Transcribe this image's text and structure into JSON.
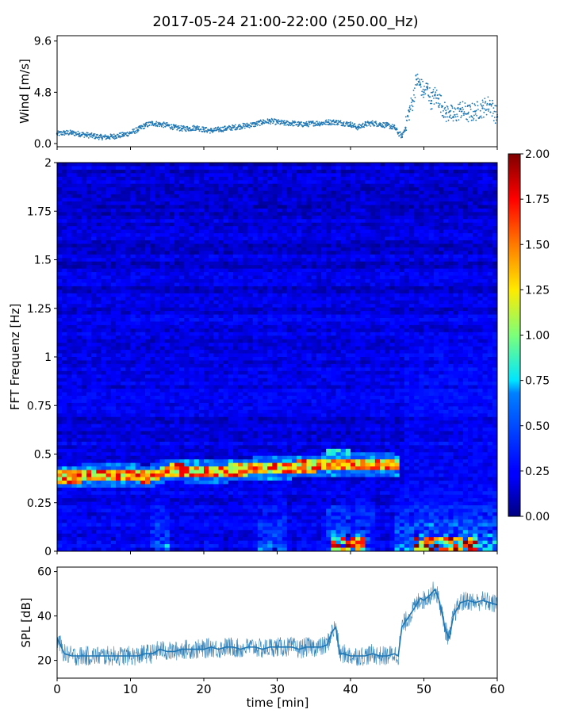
{
  "chart_data": [
    {
      "type": "scatter",
      "title": "2017-05-24 21:00-22:00 (250.00_Hz)",
      "ylabel": "Wind [m/s]",
      "xlabel": "",
      "xlim": [
        0,
        60
      ],
      "ylim": [
        -0.3,
        10.1
      ],
      "yticks": [
        0.0,
        4.8,
        9.6
      ],
      "ytick_labels": [
        "0.0",
        "4.8",
        "9.6"
      ],
      "xticks": [
        0,
        10,
        20,
        30,
        40,
        50,
        60
      ],
      "marker_color": "#1f77b4",
      "series": [
        {
          "x": [
            0,
            1,
            2,
            3,
            4,
            5,
            6,
            7,
            8,
            9,
            10,
            11,
            12,
            13,
            14,
            15,
            16,
            17,
            18,
            19,
            20,
            21,
            22,
            23,
            24,
            25,
            26,
            27,
            28,
            29,
            30,
            31,
            32,
            33,
            34,
            35,
            36,
            37,
            38,
            39,
            40,
            41,
            42,
            43,
            44,
            45,
            46,
            46.5,
            47,
            47.5,
            48,
            48.5,
            49,
            49.5,
            50,
            50.5,
            51,
            51.5,
            52,
            52.5,
            53,
            53.5,
            54,
            55,
            56,
            57,
            58,
            59,
            60
          ],
          "values": [
            0.9,
            1.0,
            1.0,
            0.9,
            0.8,
            0.7,
            0.6,
            0.6,
            0.7,
            0.8,
            1.0,
            1.3,
            1.7,
            1.9,
            1.8,
            1.7,
            1.5,
            1.4,
            1.4,
            1.5,
            1.3,
            1.2,
            1.3,
            1.4,
            1.5,
            1.6,
            1.7,
            1.8,
            2.0,
            2.1,
            2.0,
            1.9,
            1.9,
            1.8,
            1.8,
            1.9,
            1.9,
            2.0,
            2.0,
            1.9,
            1.8,
            1.5,
            1.8,
            1.9,
            1.8,
            1.7,
            1.5,
            1.0,
            0.7,
            1.5,
            3.0,
            4.0,
            6.0,
            5.5,
            4.8,
            5.2,
            4.0,
            4.5,
            4.2,
            3.5,
            2.8,
            3.0,
            2.5,
            3.2,
            2.8,
            3.0,
            3.3,
            3.7,
            2.5
          ]
        }
      ]
    },
    {
      "type": "heatmap",
      "ylabel": "FFT Frequenz [Hz]",
      "xlabel": "",
      "xlim": [
        0,
        60
      ],
      "ylim": [
        0,
        2
      ],
      "yticks": [
        0,
        0.25,
        0.5,
        0.75,
        1,
        1.25,
        1.5,
        1.75,
        2
      ],
      "ytick_labels": [
        "0",
        "0.25",
        "0.5",
        "0.75",
        "1",
        "1.25",
        "1.5",
        "1.75",
        "2"
      ],
      "colormap": "jet",
      "colorbar_range": [
        0.0,
        2.0
      ],
      "colorbar_ticks": [
        "0.00",
        "0.25",
        "0.50",
        "0.75",
        "1.00",
        "1.25",
        "1.50",
        "1.75",
        "2.00"
      ],
      "dominant_line": {
        "x": [
          0,
          5,
          10,
          12,
          15,
          20,
          25,
          30,
          35,
          40,
          45,
          46
        ],
        "freq": [
          0.37,
          0.38,
          0.38,
          0.37,
          0.41,
          0.4,
          0.41,
          0.42,
          0.43,
          0.44,
          0.44,
          0.43
        ]
      }
    },
    {
      "type": "line",
      "ylabel": "SPL [dB]",
      "xlabel": "time [min]",
      "xlim": [
        0,
        60
      ],
      "ylim": [
        12,
        62
      ],
      "yticks": [
        20,
        40,
        60
      ],
      "ytick_labels": [
        "20",
        "40",
        "60"
      ],
      "xticks": [
        0,
        10,
        20,
        30,
        40,
        50,
        60
      ],
      "xtick_labels": [
        "0",
        "10",
        "20",
        "30",
        "40",
        "50",
        "60"
      ],
      "line_color": "#1f77b4",
      "series": [
        {
          "x": [
            0,
            1,
            2,
            3,
            4,
            5,
            6,
            7,
            8,
            9,
            10,
            11,
            12,
            13,
            14,
            15,
            16,
            17,
            18,
            19,
            20,
            21,
            22,
            23,
            24,
            25,
            26,
            27,
            28,
            29,
            30,
            31,
            32,
            33,
            34,
            35,
            36,
            36.8,
            37.5,
            38,
            38.5,
            39,
            40,
            41,
            42,
            43,
            44,
            45,
            46,
            46.5,
            47,
            48,
            49,
            49.5,
            50,
            51,
            51.5,
            52,
            53,
            53.5,
            54,
            55,
            56,
            57,
            58,
            59,
            60
          ],
          "values": [
            30,
            23,
            22,
            22,
            22,
            22,
            22,
            22,
            22,
            22,
            22,
            22,
            23,
            23,
            25,
            24,
            24,
            25,
            25,
            25,
            25,
            26,
            25,
            26,
            26,
            25,
            26,
            26,
            25,
            26,
            26,
            26,
            26,
            25,
            26,
            26,
            26,
            27,
            33,
            35,
            23,
            23,
            22,
            22,
            22,
            23,
            22,
            22,
            23,
            22,
            35,
            40,
            45,
            48,
            47,
            50,
            52,
            48,
            33,
            30,
            40,
            46,
            47,
            46,
            47,
            46,
            45
          ]
        }
      ]
    }
  ]
}
